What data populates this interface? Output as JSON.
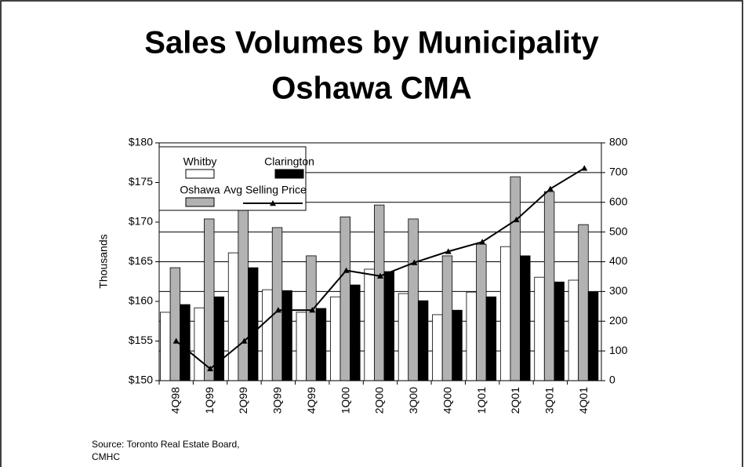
{
  "chart_data": {
    "type": "bar",
    "title": "Sales Volumes by Municipality",
    "subtitle": "Oshawa CMA",
    "y_label": "Thousands",
    "source": [
      "Source: Toronto Real Estate Board,",
      "CMHC"
    ],
    "categories": [
      "4Q98",
      "1Q99",
      "2Q99",
      "3Q99",
      "4Q99",
      "1Q00",
      "2Q00",
      "3Q00",
      "4Q00",
      "1Q01",
      "2Q01",
      "3Q01",
      "4Q01"
    ],
    "series": [
      {
        "name": "Whitby",
        "color": "#ffffff",
        "type": "bar",
        "axis": "y2",
        "values": [
          230,
          245,
          430,
          306,
          230,
          282,
          375,
          293,
          222,
          298,
          451,
          348,
          338
        ]
      },
      {
        "name": "Oshawa",
        "color": "#b2b2b2",
        "type": "bar",
        "axis": "y2",
        "values": [
          380,
          544,
          620,
          515,
          420,
          551,
          591,
          544,
          420,
          459,
          686,
          636,
          525
        ]
      },
      {
        "name": "Clarington",
        "color": "#000000",
        "type": "bar",
        "axis": "y2",
        "values": [
          256,
          282,
          380,
          303,
          243,
          322,
          367,
          269,
          237,
          282,
          420,
          332,
          298
        ]
      },
      {
        "name": "Avg Selling Price",
        "color": "#000000",
        "type": "line",
        "axis": "y",
        "values": [
          155.0,
          151.5,
          155.0,
          158.9,
          158.9,
          163.9,
          163.2,
          164.9,
          166.3,
          167.5,
          170.3,
          174.2,
          176.8
        ]
      }
    ],
    "ylim": [
      150,
      180
    ],
    "yticks": [
      {
        "value": 150,
        "label": "$150"
      },
      {
        "value": 155,
        "label": "$155"
      },
      {
        "value": 160,
        "label": "$160"
      },
      {
        "value": 165,
        "label": "$165"
      },
      {
        "value": 170,
        "label": "$170"
      },
      {
        "value": 175,
        "label": "$175"
      },
      {
        "value": 180,
        "label": "$180"
      }
    ],
    "y2lim": [
      0,
      800
    ],
    "y2ticks": [
      0,
      100,
      200,
      300,
      400,
      500,
      600,
      700,
      800
    ],
    "grid": true,
    "legend": "top-left"
  }
}
